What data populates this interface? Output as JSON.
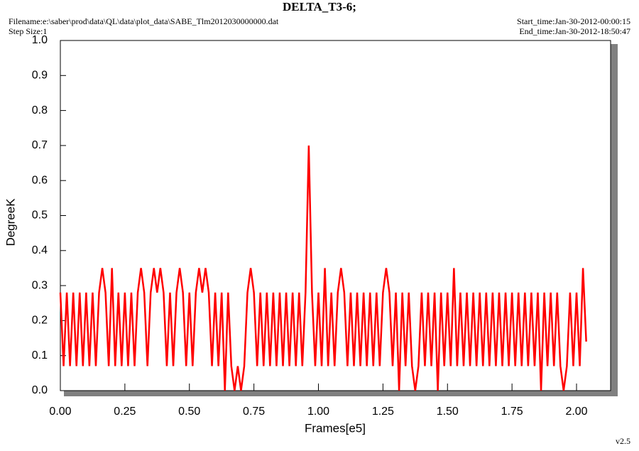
{
  "chart_data": {
    "type": "line",
    "title": "DELTA_T3-6;",
    "filename": "Filename:e:\\saber\\prod\\data\\QL\\data\\plot_data\\SABE_Tlm2012030000000.dat",
    "step_size": "Step Size:1",
    "start_time": "Start_time:Jan-30-2012-00:00:15",
    "end_time": "End_time:Jan-30-2012-18:50:47",
    "version": "v2.5",
    "x_label": "Frames[e5]",
    "y_label": "DegreeK",
    "xlim": [
      0,
      2.132
    ],
    "ylim": [
      0,
      1.0
    ],
    "xticks": [
      {
        "value": 0,
        "label": "0.00"
      },
      0.25,
      {
        "value": 0.5,
        "label": "0.50"
      },
      0.75,
      {
        "value": 1,
        "label": "1.00"
      },
      1.25,
      {
        "value": 1.5,
        "label": "1.50"
      },
      1.75,
      {
        "value": 2,
        "label": "2.00"
      }
    ],
    "yticks": [
      {
        "value": 0,
        "label": "0.0"
      },
      0.1,
      0.2,
      0.3,
      0.4,
      0.5,
      0.6,
      0.7,
      0.8,
      0.9,
      {
        "value": 1,
        "label": "1.0"
      }
    ],
    "x": [
      0,
      0.0125,
      0.025,
      0.0375,
      0.05,
      0.0625,
      0.075,
      0.0875,
      0.1,
      0.1125,
      0.125,
      0.1375,
      0.15,
      0.1625,
      0.175,
      0.1875,
      0.2,
      0.2125,
      0.225,
      0.2375,
      0.25,
      0.2625,
      0.275,
      0.2875,
      0.3,
      0.3125,
      0.325,
      0.3375,
      0.35,
      0.3625,
      0.375,
      0.3875,
      0.4,
      0.4125,
      0.425,
      0.4375,
      0.45,
      0.4625,
      0.475,
      0.4875,
      0.5,
      0.5125,
      0.525,
      0.5375,
      0.55,
      0.5625,
      0.575,
      0.5875,
      0.6,
      0.6125,
      0.625,
      0.6375,
      0.65,
      0.6625,
      0.675,
      0.6875,
      0.7,
      0.7125,
      0.725,
      0.7375,
      0.75,
      0.7625,
      0.775,
      0.7875,
      0.8,
      0.8125,
      0.825,
      0.8375,
      0.85,
      0.8625,
      0.875,
      0.8875,
      0.9,
      0.9125,
      0.925,
      0.9375,
      0.95,
      0.9625,
      0.975,
      0.9875,
      1,
      1.0125,
      1.025,
      1.0375,
      1.05,
      1.0625,
      1.075,
      1.0875,
      1.1,
      1.1125,
      1.125,
      1.1375,
      1.15,
      1.1625,
      1.175,
      1.1875,
      1.2,
      1.2125,
      1.225,
      1.2375,
      1.25,
      1.2625,
      1.275,
      1.2875,
      1.3,
      1.3125,
      1.325,
      1.3375,
      1.35,
      1.3625,
      1.375,
      1.3875,
      1.4,
      1.4125,
      1.425,
      1.4375,
      1.45,
      1.4625,
      1.475,
      1.4875,
      1.5,
      1.5125,
      1.525,
      1.5375,
      1.55,
      1.5625,
      1.575,
      1.5875,
      1.6,
      1.6125,
      1.625,
      1.6375,
      1.65,
      1.6625,
      1.675,
      1.6875,
      1.7,
      1.7125,
      1.725,
      1.7375,
      1.75,
      1.7625,
      1.775,
      1.7875,
      1.8,
      1.8125,
      1.825,
      1.8375,
      1.85,
      1.8625,
      1.875,
      1.8875,
      1.9,
      1.9125,
      1.925,
      1.9375,
      1.95,
      1.9625,
      1.975,
      1.9875,
      2,
      2.0125,
      2.025,
      2.0375
    ],
    "series": [
      {
        "color": "#ff0000",
        "values": [
          0.28,
          0.07,
          0.28,
          0.07,
          0.28,
          0.07,
          0.28,
          0.07,
          0.28,
          0.07,
          0.28,
          0.07,
          0.28,
          0.35,
          0.28,
          0.07,
          0.35,
          0.07,
          0.28,
          0.07,
          0.28,
          0.07,
          0.28,
          0.07,
          0.28,
          0.35,
          0.28,
          0.07,
          0.28,
          0.35,
          0.28,
          0.35,
          0.28,
          0.07,
          0.28,
          0.07,
          0.28,
          0.35,
          0.28,
          0.07,
          0.28,
          0.07,
          0.28,
          0.35,
          0.28,
          0.35,
          0.28,
          0.07,
          0.28,
          0.07,
          0.28,
          0,
          0.28,
          0.07,
          0,
          0.07,
          0,
          0.07,
          0.28,
          0.35,
          0.28,
          0.07,
          0.28,
          0.07,
          0.28,
          0.07,
          0.28,
          0.07,
          0.28,
          0.07,
          0.28,
          0.07,
          0.28,
          0.07,
          0.28,
          0.07,
          0.28,
          0.7,
          0.28,
          0.07,
          0.28,
          0.07,
          0.35,
          0.07,
          0.28,
          0.07,
          0.28,
          0.35,
          0.28,
          0.07,
          0.28,
          0.07,
          0.28,
          0.07,
          0.28,
          0.07,
          0.28,
          0.07,
          0.28,
          0.07,
          0.28,
          0.35,
          0.28,
          0.07,
          0.28,
          0,
          0.28,
          0.07,
          0.28,
          0.07,
          0,
          0.07,
          0.28,
          0.07,
          0.28,
          0.07,
          0.28,
          0,
          0.28,
          0.07,
          0.28,
          0.07,
          0.35,
          0.07,
          0.28,
          0.07,
          0.28,
          0.07,
          0.28,
          0.07,
          0.28,
          0.07,
          0.28,
          0.07,
          0.28,
          0.07,
          0.28,
          0.07,
          0.28,
          0.07,
          0.28,
          0.07,
          0.28,
          0.07,
          0.28,
          0.07,
          0.28,
          0.07,
          0.28,
          0,
          0.28,
          0.07,
          0.28,
          0.07,
          0.28,
          0.07,
          0,
          0.07,
          0.28,
          0.07,
          0.28,
          0.07,
          0.35,
          0.14
        ]
      }
    ]
  }
}
